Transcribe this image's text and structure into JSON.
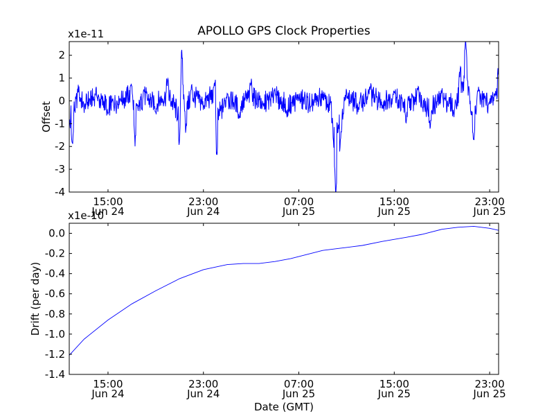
{
  "title": "APOLLO GPS Clock Properties",
  "chart_data": [
    {
      "type": "line",
      "ylabel": "Offset",
      "xlabel": "",
      "multiplier_label": "x1e-11",
      "ylim": [
        -4,
        2.6
      ],
      "yticks": [
        -4,
        -3,
        -2,
        -1,
        0,
        1,
        2
      ],
      "ytick_labels": [
        "-4",
        "-3",
        "-2",
        "-1",
        "0",
        "1",
        "2"
      ],
      "xticks": [
        {
          "time": "15:00",
          "date": "Jun 24"
        },
        {
          "time": "23:00",
          "date": "Jun 24"
        },
        {
          "time": "07:00",
          "date": "Jun 25"
        },
        {
          "time": "15:00",
          "date": "Jun 25"
        },
        {
          "time": "23:00",
          "date": "Jun 25"
        }
      ],
      "xrange": [
        "Jun 24 11:45",
        "Jun 25 23:45"
      ],
      "line_color": "#0000ff",
      "series": [
        {
          "x": [
            "Jun 24 11:45",
            "Jun 24 12:00",
            "Jun 24 12:30",
            "Jun 24 13:00",
            "Jun 24 14:00",
            "Jun 24 15:00",
            "Jun 24 16:00",
            "Jun 24 17:00",
            "Jun 24 17:15",
            "Jun 24 18:00",
            "Jun 24 19:00",
            "Jun 24 20:00",
            "Jun 24 21:00",
            "Jun 24 21:10",
            "Jun 24 21:30",
            "Jun 24 22:00",
            "Jun 24 23:00",
            "Jun 25 00:00",
            "Jun 25 00:05",
            "Jun 25 01:00",
            "Jun 25 02:00",
            "Jun 25 03:00",
            "Jun 25 04:00",
            "Jun 25 05:00",
            "Jun 25 06:00",
            "Jun 25 07:00",
            "Jun 25 08:00",
            "Jun 25 09:00",
            "Jun 25 09:50",
            "Jun 25 10:05",
            "Jun 25 10:30",
            "Jun 25 11:00",
            "Jun 25 12:00",
            "Jun 25 13:00",
            "Jun 25 14:00",
            "Jun 25 15:00",
            "Jun 25 16:00",
            "Jun 25 17:00",
            "Jun 25 18:00",
            "Jun 25 19:00",
            "Jun 25 20:00",
            "Jun 25 20:30",
            "Jun 25 21:00",
            "Jun 25 21:40",
            "Jun 25 22:00",
            "Jun 25 23:00",
            "Jun 25 23:45"
          ],
          "y": [
            -0.8,
            -1.9,
            0.6,
            -0.3,
            0.4,
            -0.6,
            0.1,
            0.8,
            -1.8,
            0.5,
            -0.4,
            0.9,
            -2.0,
            2.5,
            -1.2,
            0.6,
            -0.2,
            0.9,
            -2.5,
            0.4,
            -0.7,
            0.8,
            -0.3,
            0.5,
            -0.6,
            0.2,
            -0.4,
            0.3,
            -1.0,
            -4.0,
            -1.6,
            0.4,
            -0.3,
            0.6,
            -0.2,
            0.5,
            -0.8,
            0.7,
            -1.1,
            0.4,
            -0.6,
            1.2,
            2.6,
            -1.9,
            0.5,
            -0.2,
            1.4
          ]
        }
      ]
    },
    {
      "type": "line",
      "ylabel": "Drift (per day)",
      "xlabel": "Date (GMT)",
      "multiplier_label": "x1e-10",
      "ylim": [
        -1.4,
        0.1
      ],
      "yticks": [
        -1.4,
        -1.2,
        -1.0,
        -0.8,
        -0.6,
        -0.4,
        -0.2,
        0.0
      ],
      "ytick_labels": [
        "-1.4",
        "-1.2",
        "-1.0",
        "-0.8",
        "-0.6",
        "-0.4",
        "-0.2",
        "0.0"
      ],
      "xticks": [
        {
          "time": "15:00",
          "date": "Jun 24"
        },
        {
          "time": "23:00",
          "date": "Jun 24"
        },
        {
          "time": "07:00",
          "date": "Jun 25"
        },
        {
          "time": "15:00",
          "date": "Jun 25"
        },
        {
          "time": "23:00",
          "date": "Jun 25"
        }
      ],
      "xrange": [
        "Jun 24 11:45",
        "Jun 25 23:45"
      ],
      "line_color": "#0000ff",
      "series": [
        {
          "x": [
            "Jun 24 11:45",
            "Jun 24 13:00",
            "Jun 24 15:00",
            "Jun 24 17:00",
            "Jun 24 19:00",
            "Jun 24 21:00",
            "Jun 24 23:00",
            "Jun 25 01:00",
            "Jun 25 02:20",
            "Jun 25 03:40",
            "Jun 25 05:00",
            "Jun 25 06:20",
            "Jun 25 07:40",
            "Jun 25 09:00",
            "Jun 25 10:20",
            "Jun 25 11:00",
            "Jun 25 12:20",
            "Jun 25 14:00",
            "Jun 25 16:00",
            "Jun 25 17:20",
            "Jun 25 19:00",
            "Jun 25 20:20",
            "Jun 25 21:40",
            "Jun 25 23:00",
            "Jun 25 23:45"
          ],
          "y": [
            -1.21,
            -1.05,
            -0.86,
            -0.7,
            -0.57,
            -0.45,
            -0.36,
            -0.31,
            -0.3,
            -0.3,
            -0.28,
            -0.25,
            -0.21,
            -0.17,
            -0.15,
            -0.14,
            -0.12,
            -0.08,
            -0.04,
            -0.01,
            0.04,
            0.06,
            0.07,
            0.05,
            0.03
          ]
        }
      ]
    }
  ]
}
